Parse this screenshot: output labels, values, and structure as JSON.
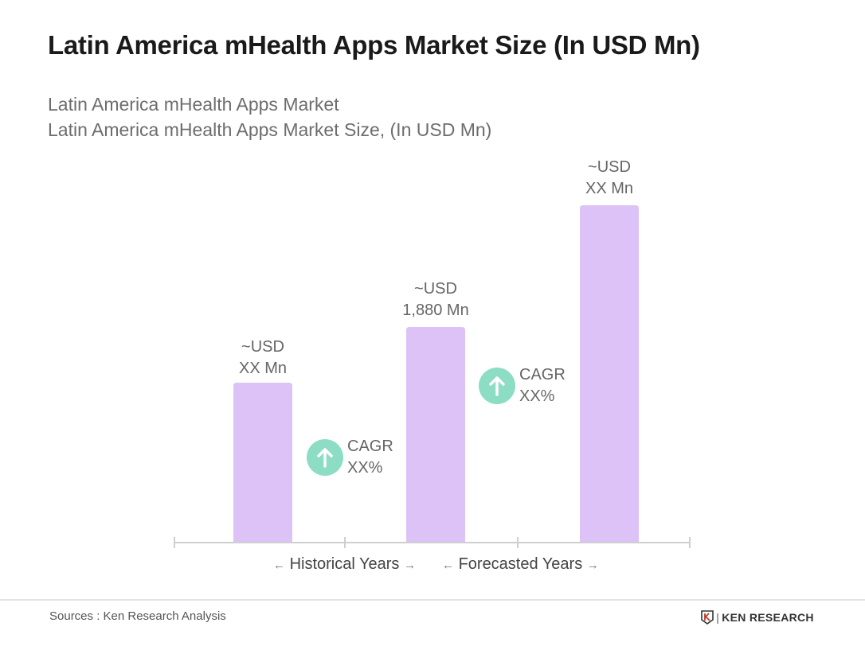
{
  "header": {
    "title": "Latin America mHealth Apps Market Size (In USD Mn)"
  },
  "chart_data": {
    "type": "bar",
    "title": "Latin America mHealth Apps Market",
    "subtitle": "Latin America mHealth Apps Market Size, (In USD Mn)",
    "categories": [
      "",
      "",
      ""
    ],
    "values": [
      1394,
      1880,
      2941
    ],
    "data_labels": [
      {
        "line1": "~USD",
        "line2": "XX Mn"
      },
      {
        "line1": "~USD",
        "line2": "1,880 Mn"
      },
      {
        "line1": "~USD",
        "line2": "XX Mn"
      }
    ],
    "annotations": [
      {
        "line1": "CAGR",
        "line2": "XX%",
        "icon": "arrow-up-circle-icon"
      },
      {
        "line1": "CAGR",
        "line2": "XX%",
        "icon": "arrow-up-circle-icon"
      }
    ],
    "periods": [
      "Historical Years",
      "Forecasted Years"
    ],
    "ylim": [
      0,
      3200
    ],
    "grid": false,
    "colors": {
      "bar": "#dcc2f7",
      "cagr": "#8ddcc4",
      "axis": "#cfcfcf"
    }
  },
  "footer": {
    "source": "Sources : Ken Research Analysis",
    "logo": "KEN RESEARCH"
  }
}
